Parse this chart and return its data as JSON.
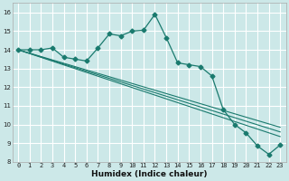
{
  "xlabel": "Humidex (Indice chaleur)",
  "background_color": "#cce8e8",
  "grid_color": "#ffffff",
  "line_color": "#1a7a6e",
  "xlim": [
    -0.5,
    23.5
  ],
  "ylim": [
    8,
    16.5
  ],
  "xticks": [
    0,
    1,
    2,
    3,
    4,
    5,
    6,
    7,
    8,
    9,
    10,
    11,
    12,
    13,
    14,
    15,
    16,
    17,
    18,
    19,
    20,
    21,
    22,
    23
  ],
  "yticks": [
    8,
    9,
    10,
    11,
    12,
    13,
    14,
    15,
    16
  ],
  "line1_x": [
    0,
    1,
    2,
    3,
    4,
    5,
    6,
    7,
    8,
    9,
    10,
    11,
    12,
    13,
    14,
    15,
    16,
    17,
    18,
    19,
    20,
    21,
    22,
    23
  ],
  "line1_y": [
    14.0,
    14.0,
    14.0,
    14.1,
    13.6,
    13.5,
    13.4,
    14.1,
    14.85,
    14.75,
    15.0,
    15.05,
    15.9,
    14.65,
    13.3,
    13.2,
    13.1,
    12.6,
    10.8,
    10.0,
    9.55,
    8.85,
    8.4,
    8.9
  ],
  "line2_x": [
    0,
    23
  ],
  "line2_y": [
    14.0,
    9.85
  ],
  "line3_x": [
    0,
    23
  ],
  "line3_y": [
    14.0,
    9.6
  ],
  "line4_x": [
    0,
    23
  ],
  "line4_y": [
    14.0,
    9.35
  ],
  "markersize": 2.5,
  "tick_fontsize": 5.0,
  "xlabel_fontsize": 6.5
}
